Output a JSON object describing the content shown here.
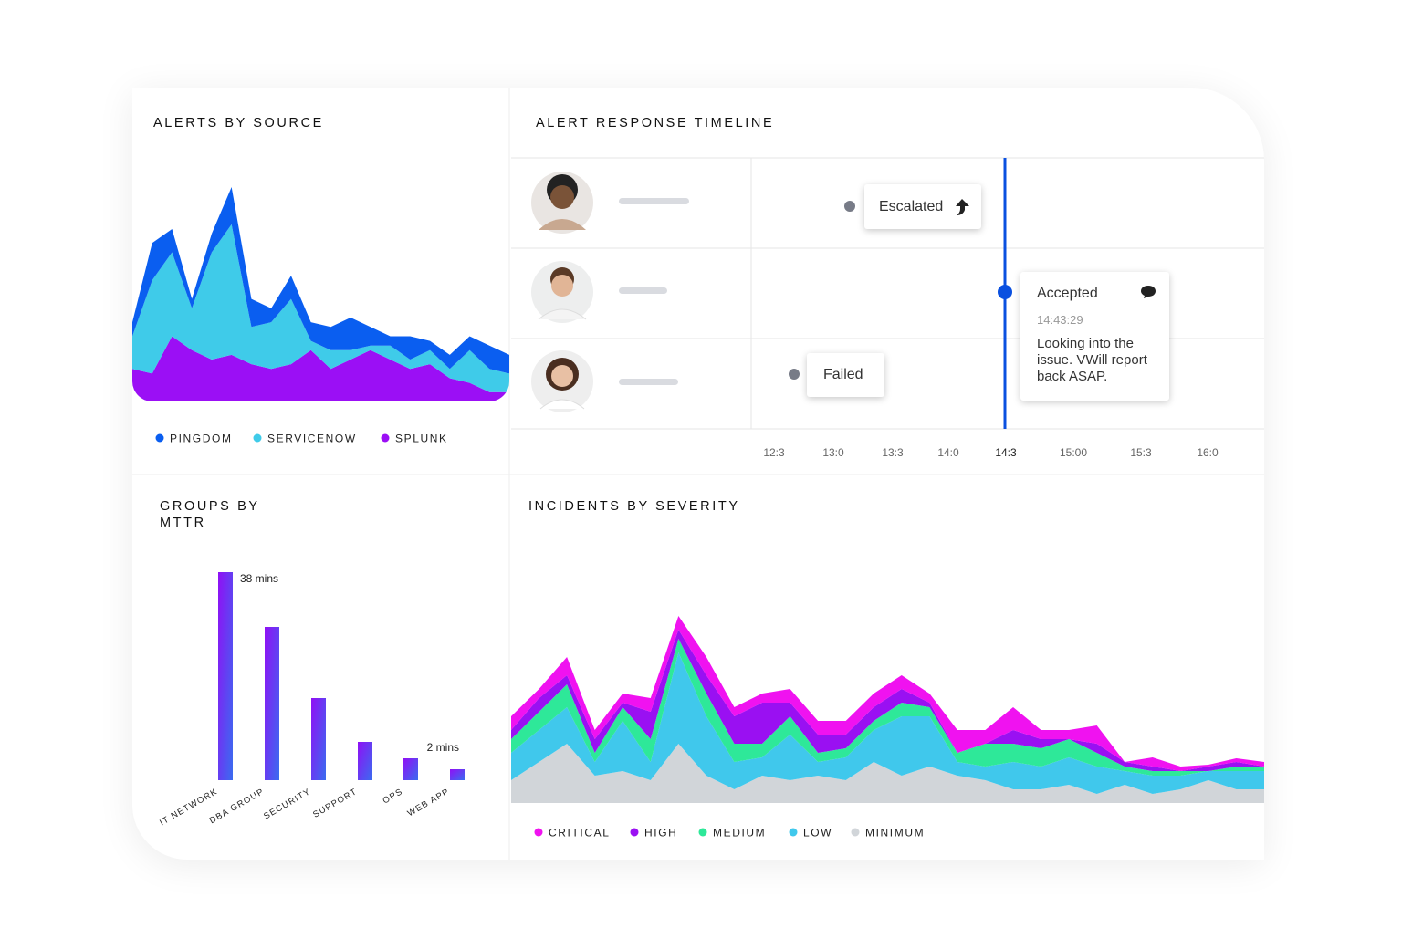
{
  "chart_data": [
    {
      "type": "area",
      "title": "ALERTS BY SOURCE",
      "stacked": true,
      "series": [
        {
          "name": "PINGDOM",
          "color": "#0a5ef0",
          "values": [
            15,
            40,
            25,
            10,
            20,
            40,
            30,
            15,
            25,
            20,
            25,
            35,
            20,
            10,
            25,
            10,
            15,
            15,
            25,
            20
          ]
        },
        {
          "name": "SERVICENOW",
          "color": "#3fcbe9",
          "values": [
            35,
            100,
            90,
            45,
            115,
            140,
            40,
            50,
            70,
            10,
            20,
            10,
            5,
            15,
            10,
            15,
            10,
            35,
            25,
            20
          ]
        },
        {
          "name": "SPLUNK",
          "color": "#9b0ff5",
          "values": [
            35,
            30,
            70,
            55,
            45,
            50,
            40,
            35,
            40,
            55,
            35,
            45,
            55,
            45,
            35,
            40,
            25,
            20,
            10,
            10
          ]
        }
      ]
    },
    {
      "type": "bar",
      "title": "GROUPS BY MTTR",
      "categories": [
        "IT NETWORK",
        "DBA GROUP",
        "SECURITY",
        "SUPPORT",
        "OPS",
        "WEB APP"
      ],
      "values": [
        38,
        28,
        15,
        7,
        4,
        2
      ],
      "value_labels": [
        "38 mins",
        null,
        null,
        null,
        null,
        "2 mins"
      ],
      "colors": [
        "#9010f5",
        "#3a6cf0"
      ]
    },
    {
      "type": "area",
      "title": "INCIDENTS BY SEVERITY",
      "stacked": true,
      "series": [
        {
          "name": "CRITICAL",
          "color": "#f012f0",
          "values": [
            15,
            10,
            20,
            10,
            10,
            15,
            15,
            20,
            10,
            10,
            15,
            15,
            15,
            15,
            15,
            10,
            25,
            15,
            25,
            10,
            10,
            20,
            0,
            10,
            5,
            2,
            4,
            5
          ]
        },
        {
          "name": "HIGH",
          "color": "#9a10f2",
          "values": [
            10,
            15,
            10,
            15,
            5,
            30,
            10,
            20,
            30,
            45,
            15,
            20,
            15,
            15,
            15,
            5,
            0,
            0,
            15,
            10,
            0,
            10,
            5,
            5,
            0,
            5,
            5,
            0
          ]
        },
        {
          "name": "MEDIUM",
          "color": "#2ee899",
          "values": [
            15,
            20,
            25,
            10,
            15,
            25,
            15,
            25,
            20,
            15,
            20,
            10,
            10,
            10,
            15,
            10,
            10,
            25,
            20,
            20,
            20,
            15,
            5,
            5,
            5,
            0,
            5,
            5
          ]
        },
        {
          "name": "LOW",
          "color": "#40c8ec",
          "values": [
            30,
            35,
            40,
            15,
            55,
            20,
            100,
            65,
            30,
            20,
            50,
            15,
            25,
            35,
            65,
            55,
            15,
            15,
            30,
            25,
            30,
            30,
            15,
            20,
            15,
            10,
            20,
            20
          ]
        },
        {
          "name": "MINIMUM",
          "color": "#d1d5d9",
          "values": [
            25,
            45,
            65,
            30,
            35,
            25,
            65,
            30,
            15,
            30,
            25,
            30,
            25,
            45,
            30,
            40,
            30,
            25,
            15,
            15,
            20,
            10,
            20,
            10,
            15,
            25,
            15,
            15
          ]
        }
      ]
    }
  ],
  "timeline": {
    "title": "ALERT RESPONSE TIMELINE",
    "events": [
      {
        "label": "Escalated"
      },
      {
        "label": "Accepted",
        "time": "14:43:29",
        "note": "Looking into the issue. VWill report back ASAP."
      },
      {
        "label": "Failed"
      }
    ],
    "ticks": [
      "12:3",
      "13:0",
      "13:3",
      "14:0",
      "14:3",
      "15:00",
      "15:3",
      "16:0"
    ]
  }
}
